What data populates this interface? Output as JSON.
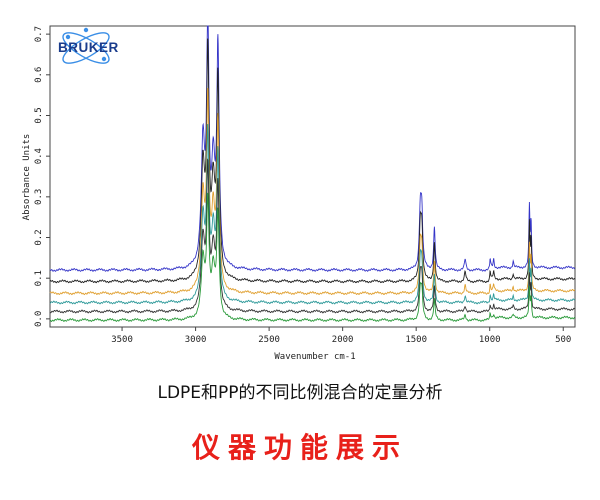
{
  "logo": {
    "text": "BRUKER",
    "color": "#1a3c8c",
    "orbit_color": "#3a8ee6"
  },
  "chart_data": {
    "type": "line",
    "title": "",
    "xlabel": "Wavenumber cm-1",
    "ylabel": "Absorbance Units",
    "xlim": [
      3990,
      420
    ],
    "ylim": [
      -0.02,
      0.72
    ],
    "xticks": [
      3500,
      3000,
      2500,
      2000,
      1500,
      1000,
      500
    ],
    "yticks": [
      0.0,
      0.1,
      0.2,
      0.3,
      0.4,
      0.5,
      0.6,
      0.7
    ],
    "ytick_labels": [
      "0.0",
      "0.1",
      "0.2",
      "0.3",
      "0.4",
      "0.5",
      "0.6",
      "0.7"
    ],
    "grid": false,
    "peaks": [
      {
        "x": 2950,
        "w": 14,
        "h": 0.28
      },
      {
        "x": 2917,
        "w": 10,
        "h": 0.55
      },
      {
        "x": 2880,
        "w": 14,
        "h": 0.22
      },
      {
        "x": 2848,
        "w": 10,
        "h": 0.5
      },
      {
        "x": 1472,
        "w": 8,
        "h": 0.13
      },
      {
        "x": 1462,
        "w": 8,
        "h": 0.12
      },
      {
        "x": 1376,
        "w": 6,
        "h": 0.1
      },
      {
        "x": 1167,
        "w": 6,
        "h": 0.025
      },
      {
        "x": 997,
        "w": 4,
        "h": 0.02
      },
      {
        "x": 973,
        "w": 4,
        "h": 0.02
      },
      {
        "x": 840,
        "w": 4,
        "h": 0.015
      },
      {
        "x": 730,
        "w": 4,
        "h": 0.14
      },
      {
        "x": 719,
        "w": 4,
        "h": 0.1
      }
    ],
    "series": [
      {
        "color": "#3535c8",
        "offset": 0.12,
        "scale": 1.05
      },
      {
        "color": "#222222",
        "offset": 0.092,
        "scale": 0.95
      },
      {
        "color": "#e0a030",
        "offset": 0.063,
        "scale": 0.8
      },
      {
        "color": "#2e9a9a",
        "offset": 0.04,
        "scale": 0.7
      },
      {
        "color": "#333333",
        "offset": 0.018,
        "scale": 0.6
      },
      {
        "color": "#2a9a3a",
        "offset": -0.003,
        "scale": 0.5
      }
    ]
  },
  "captions": {
    "main": "LDPE和PP的不同比例混合的定量分析",
    "title": "仪器功能展示",
    "title_color": "#e8201a"
  }
}
